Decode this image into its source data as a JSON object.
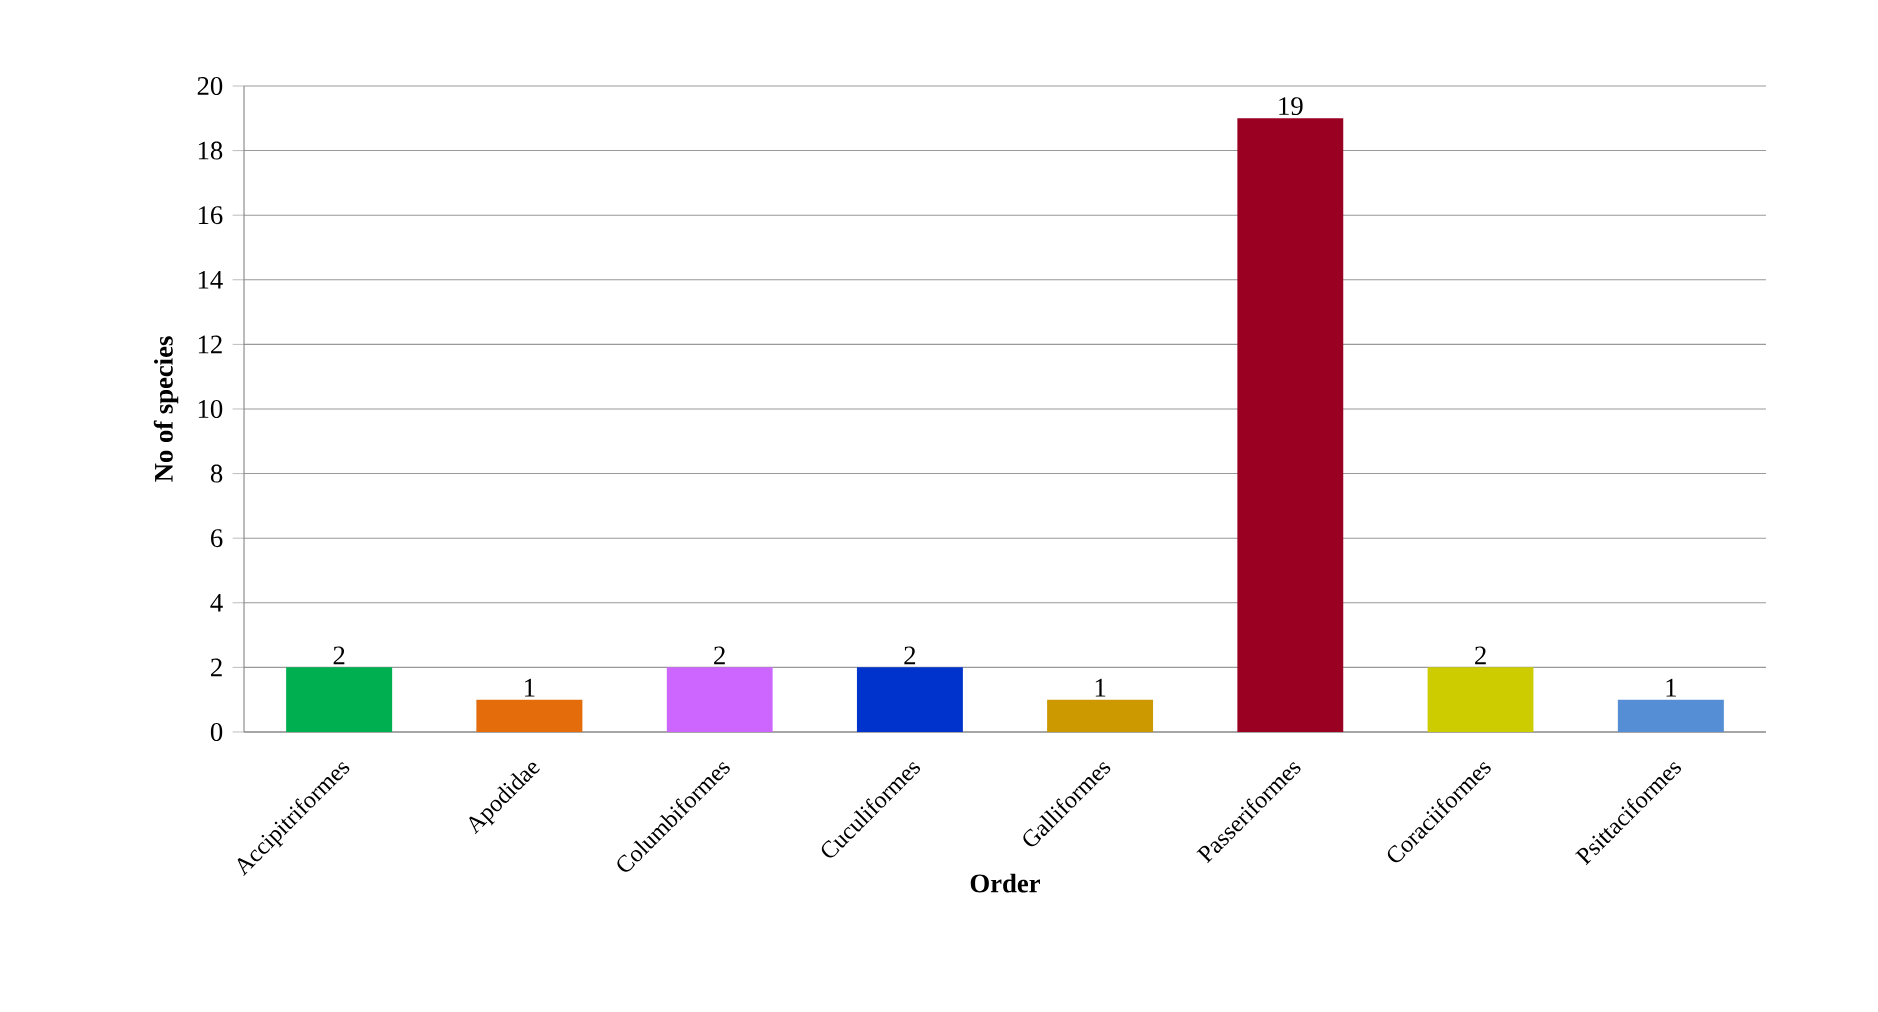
{
  "chart_data": {
    "type": "bar",
    "xlabel": "Order",
    "ylabel": "No of species",
    "categories": [
      "Accipitriformes",
      "Apodidae",
      "Columbiformes",
      "Cuculiformes",
      "Galliformes",
      "Passeriformes",
      "Coraciiformes",
      "Psittaciformes"
    ],
    "values": [
      2,
      1,
      2,
      2,
      1,
      19,
      2,
      1
    ],
    "colors": [
      "#00b050",
      "#e46c0a",
      "#cc66ff",
      "#0033cc",
      "#cc9900",
      "#990022",
      "#cccc00",
      "#558ed5"
    ],
    "ylim": [
      0,
      20
    ],
    "yticks": [
      0,
      2,
      4,
      6,
      8,
      10,
      12,
      14,
      16,
      18,
      20
    ],
    "grid": "y",
    "data_labels": true
  }
}
